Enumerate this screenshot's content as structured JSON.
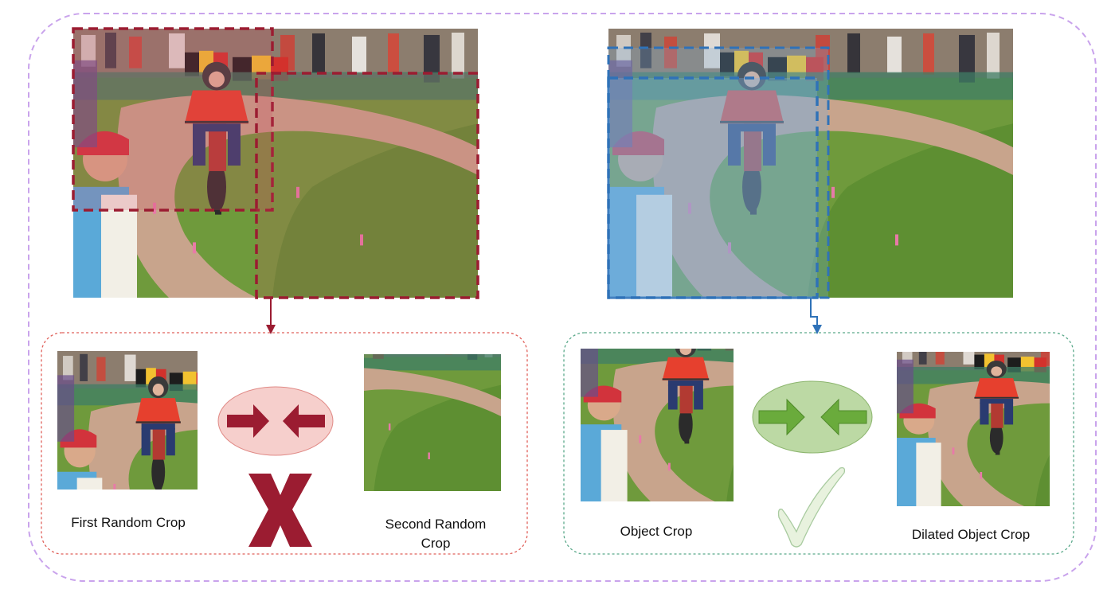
{
  "labels": {
    "first_random_crop": "First Random Crop",
    "second_random_crop": "Second Random Crop",
    "object_crop": "Object Crop",
    "dilated_object_crop": "Dilated Object Crop"
  },
  "icons": {
    "pull_arrows_left": "inward-arrows-icon",
    "pull_arrows_right": "inward-arrows-icon",
    "wrong": "x-mark-icon",
    "correct": "check-mark-icon"
  },
  "colors": {
    "outer_border": "#c9a3ec",
    "negative_crop": "#9b1c31",
    "negative_panel_border": "#e0605a",
    "positive_crop": "#2f72b8",
    "positive_panel_border": "#5aa98a",
    "negative_oval": "#f6cfcc",
    "positive_oval": "#bcd9a4",
    "negative_arrow": "#9b1c31",
    "positive_arrow": "#6aab3c"
  }
}
